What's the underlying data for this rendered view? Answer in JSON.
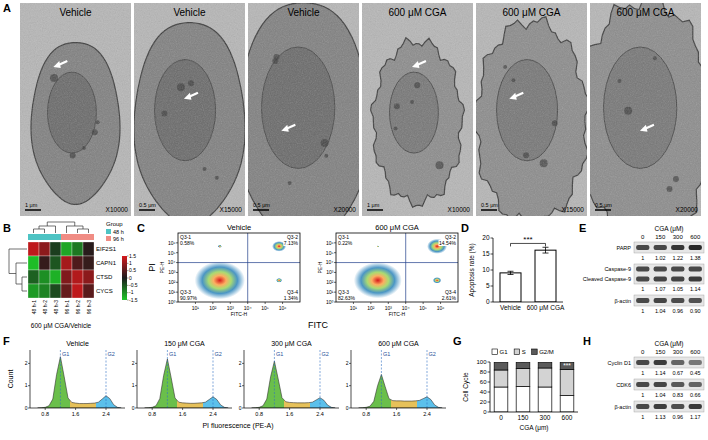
{
  "panel_letters": [
    "A",
    "B",
    "C",
    "D",
    "E",
    "F",
    "G",
    "H"
  ],
  "figure": {
    "A": {
      "images": [
        {
          "title": "Vehicle",
          "magnification": "X10000",
          "scale_bar": "1 μm"
        },
        {
          "title": "Vehicle",
          "magnification": "X15000",
          "scale_bar": "0.5 μm"
        },
        {
          "title": "Vehicle",
          "magnification": "X20000",
          "scale_bar": "0.5 μm"
        },
        {
          "title": "600 μM CGA",
          "magnification": "X10000",
          "scale_bar": "1 μm"
        },
        {
          "title": "600 μM CGA",
          "magnification": "X15000",
          "scale_bar": "0.5 μm"
        },
        {
          "title": "600 μM CGA",
          "magnification": "X20000",
          "scale_bar": "0.5 μm"
        }
      ]
    },
    "B": {
      "genes": [
        "EIF2S1",
        "CAPN1",
        "CTSD",
        "CYCS"
      ],
      "samples": [
        "48 h-1",
        "48 h-2",
        "48 h-3",
        "96 h-1",
        "96 h-2",
        "96 h-3"
      ],
      "values": [
        [
          1.3,
          0.9,
          -0.3,
          -1.2,
          -0.8,
          0.1
        ],
        [
          -1.4,
          0.2,
          -0.5,
          1.1,
          0.4,
          0.2
        ],
        [
          -0.6,
          -1.0,
          -1.3,
          0.8,
          1.2,
          0.9
        ],
        [
          -1.1,
          -0.9,
          -0.4,
          0.6,
          1.3,
          0.5
        ]
      ],
      "group_title": "Group",
      "groups": [
        "48 h",
        "96 h"
      ],
      "group_colors": [
        "#4ec4c4",
        "#f08c84"
      ],
      "sample_groups": [
        0,
        0,
        0,
        1,
        1,
        1
      ],
      "color_range": [
        -1.5,
        1.5
      ],
      "color_ticks": [
        1.5,
        1,
        0.5,
        0,
        -0.5,
        -1,
        -1.5
      ],
      "label": "600 μM CGA/Vehicle"
    },
    "C": {
      "x_label": "FITC",
      "y_label": "PI",
      "x_axis_name": "FITC-H",
      "y_axis_name": "PE-H",
      "log": true,
      "xlim": [
        1,
        10000000
      ],
      "ylim": [
        1,
        10000000
      ],
      "xticks": [
        {
          "value": 10,
          "label": "10¹"
        },
        {
          "value": 100,
          "label": "10²"
        },
        {
          "value": 1000,
          "label": "10³"
        },
        {
          "value": 10000,
          "label": "10⁴"
        },
        {
          "value": 100000,
          "label": "10⁵"
        },
        {
          "value": 1000000,
          "label": "10⁶"
        }
      ],
      "yticks": [
        {
          "value": 1,
          "label": "10⁰"
        },
        {
          "value": 10,
          "label": "10¹"
        },
        {
          "value": 100,
          "label": "10²"
        },
        {
          "value": 1000,
          "label": "10³"
        },
        {
          "value": 10000,
          "label": "10⁴"
        },
        {
          "value": 100000,
          "label": "10⁵"
        },
        {
          "value": 1000000,
          "label": "10⁶"
        }
      ],
      "gate": [
        10000,
        10000
      ],
      "plots": [
        {
          "title": "Vehicle",
          "quadrants": [
            {
              "name": "Q3-1",
              "value": 0.58,
              "value_label": "0.58%"
            },
            {
              "name": "Q3-2",
              "value": 7.13,
              "value_label": "7.13%"
            },
            {
              "name": "Q3-3",
              "value": 90.97,
              "value_label": "90.97%"
            },
            {
              "name": "Q3-4",
              "value": 1.34,
              "value_label": "1.34%"
            }
          ]
        },
        {
          "title": "600 μM CGA",
          "quadrants": [
            {
              "name": "Q3-1",
              "value": 0.22,
              "value_label": "0.22%"
            },
            {
              "name": "Q3-2",
              "value": 14.54,
              "value_label": "14.54%"
            },
            {
              "name": "Q3-3",
              "value": 82.63,
              "value_label": "82.63%"
            },
            {
              "name": "Q3-4",
              "value": 2.61,
              "value_label": "2.61%"
            }
          ]
        }
      ]
    },
    "E": {
      "header": "CGA (μM)",
      "lanes": [
        "0",
        "150",
        "300",
        "600"
      ],
      "rows": [
        {
          "labels": [
            "PARP"
          ],
          "values": [
            1,
            1.02,
            1.22,
            1.38
          ],
          "value_labels": [
            "1",
            "1.02",
            "1.22",
            "1.38"
          ]
        },
        {
          "labels": [
            "Caspase-9",
            "Cleaved Caspase-9"
          ],
          "values": [
            1,
            1.07,
            1.05,
            1.14
          ],
          "value_labels": [
            "1",
            "1.07",
            "1.05",
            "1.14"
          ]
        },
        {
          "labels": [
            "β-actin"
          ],
          "values": [
            1,
            1.04,
            0.96,
            0.9
          ],
          "value_labels": [
            "1",
            "1.04",
            "0.96",
            "0.90"
          ]
        }
      ]
    },
    "F": {
      "x_label": "PI fluorescence (PE-A)",
      "y_label": "Count",
      "x": [
        0.6,
        0.7,
        0.8,
        0.9,
        1.0,
        1.1,
        1.2,
        1.3,
        1.4,
        1.5,
        1.6,
        1.7,
        1.8,
        1.9,
        2.0,
        2.1,
        2.2,
        2.3,
        2.4,
        2.5,
        2.6,
        2.7,
        2.8
      ],
      "xlim": [
        0.4,
        2.9
      ],
      "xticks": [
        0.8,
        1.6,
        2.4
      ],
      "ylim": [
        0,
        2.6
      ],
      "yticks": [
        0,
        1,
        2
      ],
      "markers": [
        {
          "label": "G1",
          "x": 1.2
        },
        {
          "label": "G2",
          "x": 2.4
        }
      ],
      "series": [
        {
          "name": "Vehicle",
          "values": [
            0,
            0.01,
            0.03,
            0.1,
            0.4,
            1.5,
            2.3,
            1.4,
            0.45,
            0.25,
            0.22,
            0.2,
            0.2,
            0.2,
            0.21,
            0.22,
            0.26,
            0.4,
            0.55,
            0.42,
            0.15,
            0.03,
            0
          ]
        },
        {
          "name": "150 μM CGA",
          "values": [
            0,
            0.01,
            0.03,
            0.1,
            0.42,
            1.45,
            2.2,
            1.35,
            0.45,
            0.26,
            0.23,
            0.22,
            0.21,
            0.21,
            0.22,
            0.23,
            0.26,
            0.38,
            0.5,
            0.38,
            0.14,
            0.03,
            0
          ]
        },
        {
          "name": "300 μM CGA",
          "values": [
            0,
            0.01,
            0.03,
            0.1,
            0.4,
            1.4,
            2.1,
            1.3,
            0.46,
            0.28,
            0.25,
            0.24,
            0.23,
            0.23,
            0.23,
            0.24,
            0.26,
            0.36,
            0.46,
            0.35,
            0.13,
            0.03,
            0
          ]
        },
        {
          "name": "600 μM CGA",
          "values": [
            0,
            0.01,
            0.03,
            0.08,
            0.3,
            1.0,
            1.5,
            0.95,
            0.42,
            0.33,
            0.32,
            0.32,
            0.31,
            0.31,
            0.31,
            0.32,
            0.34,
            0.42,
            0.5,
            0.38,
            0.14,
            0.03,
            0
          ]
        }
      ]
    },
    "H": {
      "header": "CGA (μM)",
      "lanes": [
        "0",
        "150",
        "300",
        "600"
      ],
      "rows": [
        {
          "labels": [
            "Cyclin D1"
          ],
          "values": [
            1,
            1.14,
            0.67,
            0.45
          ],
          "value_labels": [
            "1",
            "1.14",
            "0.67",
            "0.45"
          ]
        },
        {
          "labels": [
            "CDK6"
          ],
          "values": [
            1,
            1.04,
            0.83,
            0.66
          ],
          "value_labels": [
            "1",
            "1.04",
            "0.83",
            "0.66"
          ]
        },
        {
          "labels": [
            "β-actin"
          ],
          "values": [
            1,
            1.13,
            0.96,
            1.17
          ],
          "value_labels": [
            "1",
            "1.13",
            "0.96",
            "1.17"
          ]
        }
      ]
    }
  },
  "chart_data": [
    {
      "type": "bar",
      "categories": [
        "Vehicle",
        "600 μM CGA"
      ],
      "values": [
        9.1,
        16.2
      ],
      "errors": [
        0.5,
        0.9
      ],
      "color": "#ffffff",
      "ylim": [
        0,
        20
      ],
      "yticks": [
        0,
        5,
        10,
        15,
        20
      ],
      "y_label": "Apoptosis rate (%)",
      "annotations": [
        {
          "text": "***",
          "y": 18.3
        }
      ]
    },
    {
      "type": "bar",
      "stacked": true,
      "categories": [
        "0",
        "150",
        "300",
        "600"
      ],
      "series": [
        {
          "name": "G1",
          "color": "#ffffff",
          "values": [
            50,
            51,
            50,
            33
          ],
          "errors": [
            1.2,
            1.0,
            1.3,
            1.5
          ]
        },
        {
          "name": "S",
          "color": "#d3d3d3",
          "values": [
            34,
            36,
            38,
            52
          ],
          "errors": [
            1.5,
            1.2,
            1.4,
            1.6
          ]
        },
        {
          "name": "G2/M",
          "color": "#5a5a5a",
          "values": [
            16,
            13,
            12,
            15
          ],
          "errors": [
            1.0,
            0.8,
            0.9,
            1.2
          ]
        }
      ],
      "ylim": [
        0,
        100
      ],
      "yticks": [
        0,
        20,
        40,
        60,
        80,
        100
      ],
      "y_label": "Cell Cycle",
      "x_label": "CGA (μm)",
      "legend": "top",
      "annotations": [
        {
          "text": "***",
          "category": 3
        }
      ]
    }
  ]
}
